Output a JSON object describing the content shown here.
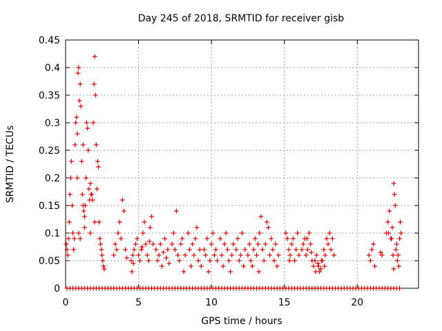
{
  "chart_data": {
    "type": "scatter",
    "title": "Day 245 of 2018, SRMTID for receiver gisb",
    "xlabel": "GPS time / hours",
    "ylabel": "SRMTID / TECUs",
    "xlim": [
      0,
      24.2
    ],
    "ylim": [
      0,
      0.45
    ],
    "xticks": [
      0,
      5,
      10,
      15,
      20
    ],
    "xtick_labels": [
      "0",
      "5",
      "10",
      "15",
      "20"
    ],
    "yticks": [
      0,
      0.05,
      0.1,
      0.15,
      0.2,
      0.25,
      0.3,
      0.35,
      0.4,
      0.45
    ],
    "ytick_labels": [
      "0",
      "0.05",
      "0.1",
      "0.15",
      "0.2",
      "0.25",
      "0.3",
      "0.35",
      "0.4",
      "0.45"
    ],
    "grid": true,
    "marker": "plus",
    "series": [
      {
        "name": "SRMTID",
        "color": "#e00000",
        "points": [
          [
            0.05,
            0.08
          ],
          [
            0.1,
            0.07
          ],
          [
            0.15,
            0.06
          ],
          [
            0.2,
            0.09
          ],
          [
            0.25,
            0.12
          ],
          [
            0.3,
            0.17
          ],
          [
            0.35,
            0.2
          ],
          [
            0.4,
            0.23
          ],
          [
            0.45,
            0.15
          ],
          [
            0.5,
            0.1
          ],
          [
            0.55,
            0.07
          ],
          [
            0.6,
            0.09
          ],
          [
            0.65,
            0.26
          ],
          [
            0.7,
            0.3
          ],
          [
            0.75,
            0.31
          ],
          [
            0.8,
            0.28
          ],
          [
            0.85,
            0.39
          ],
          [
            0.9,
            0.4
          ],
          [
            0.95,
            0.34
          ],
          [
            1.0,
            0.37
          ],
          [
            1.05,
            0.33
          ],
          [
            1.1,
            0.23
          ],
          [
            1.15,
            0.17
          ],
          [
            1.2,
            0.15
          ],
          [
            1.25,
            0.14
          ],
          [
            1.3,
            0.13
          ],
          [
            1.35,
            0.15
          ],
          [
            1.4,
            0.2
          ],
          [
            1.45,
            0.3
          ],
          [
            1.5,
            0.29
          ],
          [
            1.55,
            0.25
          ],
          [
            1.6,
            0.18
          ],
          [
            1.65,
            0.16
          ],
          [
            1.7,
            0.19
          ],
          [
            1.75,
            0.17
          ],
          [
            1.8,
            0.17
          ],
          [
            1.85,
            0.16
          ],
          [
            1.9,
            0.3
          ],
          [
            1.95,
            0.37
          ],
          [
            2.0,
            0.42
          ],
          [
            2.05,
            0.35
          ],
          [
            2.1,
            0.26
          ],
          [
            2.15,
            0.18
          ],
          [
            2.2,
            0.23
          ],
          [
            2.25,
            0.22
          ],
          [
            2.3,
            0.12
          ],
          [
            2.35,
            0.09
          ],
          [
            2.4,
            0.08
          ],
          [
            2.45,
            0.07
          ],
          [
            2.5,
            0.06
          ],
          [
            2.55,
            0.05
          ],
          [
            2.6,
            0.04
          ],
          [
            2.65,
            0.035
          ],
          [
            0.9,
            0.1
          ],
          [
            1.0,
            0.09
          ],
          [
            1.3,
            0.11
          ],
          [
            1.7,
            0.1
          ],
          [
            2.0,
            0.12
          ],
          [
            1.2,
            0.26
          ],
          [
            0.8,
            0.2
          ],
          [
            3.4,
            0.08
          ],
          [
            3.5,
            0.07
          ],
          [
            3.6,
            0.1
          ],
          [
            3.7,
            0.12
          ],
          [
            3.8,
            0.09
          ],
          [
            3.9,
            0.16
          ],
          [
            4.0,
            0.14
          ],
          [
            4.1,
            0.07
          ],
          [
            4.2,
            0.055
          ],
          [
            3.3,
            0.06
          ],
          [
            4.5,
            0.05
          ],
          [
            4.6,
            0.06
          ],
          [
            4.7,
            0.07
          ],
          [
            4.8,
            0.08
          ],
          [
            4.9,
            0.09
          ],
          [
            5.0,
            0.06
          ],
          [
            5.1,
            0.05
          ],
          [
            5.2,
            0.07
          ],
          [
            5.3,
            0.1
          ],
          [
            5.4,
            0.12
          ],
          [
            5.5,
            0.08
          ],
          [
            5.6,
            0.06
          ],
          [
            5.7,
            0.05
          ],
          [
            5.8,
            0.11
          ],
          [
            5.9,
            0.13
          ],
          [
            6.0,
            0.08
          ],
          [
            4.55,
            0.03
          ],
          [
            4.65,
            0.045
          ],
          [
            5.25,
            0.075
          ],
          [
            5.75,
            0.085
          ],
          [
            6.2,
            0.07
          ],
          [
            6.3,
            0.05
          ],
          [
            6.4,
            0.06
          ],
          [
            6.5,
            0.08
          ],
          [
            6.6,
            0.04
          ],
          [
            6.7,
            0.065
          ],
          [
            6.8,
            0.09
          ],
          [
            6.9,
            0.055
          ],
          [
            7.0,
            0.07
          ],
          [
            7.1,
            0.045
          ],
          [
            7.3,
            0.08
          ],
          [
            7.4,
            0.1
          ],
          [
            7.5,
            0.07
          ],
          [
            7.6,
            0.14
          ],
          [
            7.7,
            0.06
          ],
          [
            7.8,
            0.05
          ],
          [
            7.9,
            0.08
          ],
          [
            8.0,
            0.09
          ],
          [
            8.1,
            0.03
          ],
          [
            8.2,
            0.06
          ],
          [
            8.4,
            0.1
          ],
          [
            8.5,
            0.07
          ],
          [
            8.6,
            0.04
          ],
          [
            8.7,
            0.08
          ],
          [
            8.8,
            0.06
          ],
          [
            8.9,
            0.09
          ],
          [
            9.0,
            0.11
          ],
          [
            9.1,
            0.05
          ],
          [
            9.2,
            0.07
          ],
          [
            9.3,
            0.04
          ],
          [
            9.5,
            0.07
          ],
          [
            9.6,
            0.06
          ],
          [
            9.7,
            0.09
          ],
          [
            9.8,
            0.03
          ],
          [
            9.9,
            0.05
          ],
          [
            10.0,
            0.08
          ],
          [
            10.1,
            0.1
          ],
          [
            10.2,
            0.06
          ],
          [
            10.3,
            0.07
          ],
          [
            10.4,
            0.05
          ],
          [
            10.6,
            0.09
          ],
          [
            10.7,
            0.06
          ],
          [
            10.8,
            0.04
          ],
          [
            10.9,
            0.08
          ],
          [
            11.0,
            0.1
          ],
          [
            11.1,
            0.07
          ],
          [
            11.2,
            0.05
          ],
          [
            11.3,
            0.03
          ],
          [
            11.4,
            0.06
          ],
          [
            11.5,
            0.08
          ],
          [
            11.7,
            0.07
          ],
          [
            11.8,
            0.09
          ],
          [
            11.9,
            0.05
          ],
          [
            12.0,
            0.06
          ],
          [
            12.1,
            0.1
          ],
          [
            12.2,
            0.04
          ],
          [
            12.3,
            0.07
          ],
          [
            12.5,
            0.06
          ],
          [
            12.6,
            0.08
          ],
          [
            12.7,
            0.05
          ],
          [
            12.9,
            0.07
          ],
          [
            13.0,
            0.09
          ],
          [
            13.1,
            0.06
          ],
          [
            13.2,
            0.08
          ],
          [
            13.3,
            0.1
          ],
          [
            13.4,
            0.13
          ],
          [
            13.5,
            0.07
          ],
          [
            13.6,
            0.05
          ],
          [
            13.7,
            0.08
          ],
          [
            13.8,
            0.12
          ],
          [
            13.9,
            0.11
          ],
          [
            14.0,
            0.06
          ],
          [
            14.1,
            0.09
          ],
          [
            14.2,
            0.07
          ],
          [
            14.3,
            0.05
          ],
          [
            14.4,
            0.08
          ],
          [
            14.5,
            0.04
          ],
          [
            14.6,
            0.06
          ],
          [
            13.25,
            0.03
          ],
          [
            12.8,
            0.04
          ],
          [
            15.2,
            0.09
          ],
          [
            15.3,
            0.07
          ],
          [
            15.4,
            0.06
          ],
          [
            15.5,
            0.08
          ],
          [
            15.6,
            0.09
          ],
          [
            15.7,
            0.05
          ],
          [
            15.8,
            0.07
          ],
          [
            15.9,
            0.1
          ],
          [
            16.0,
            0.06
          ],
          [
            15.1,
            0.1
          ],
          [
            16.2,
            0.07
          ],
          [
            16.3,
            0.08
          ],
          [
            16.4,
            0.09
          ],
          [
            16.5,
            0.06
          ],
          [
            16.6,
            0.07
          ],
          [
            16.7,
            0.1
          ],
          [
            16.8,
            0.08
          ],
          [
            16.9,
            0.05
          ],
          [
            17.0,
            0.04
          ],
          [
            17.1,
            0.05
          ],
          [
            17.2,
            0.06
          ],
          [
            17.3,
            0.045
          ],
          [
            17.4,
            0.03
          ],
          [
            17.5,
            0.035
          ],
          [
            17.6,
            0.05
          ],
          [
            17.7,
            0.07
          ],
          [
            17.8,
            0.06
          ],
          [
            17.9,
            0.09
          ],
          [
            18.0,
            0.08
          ],
          [
            18.1,
            0.1
          ],
          [
            18.2,
            0.07
          ],
          [
            18.3,
            0.09
          ],
          [
            18.4,
            0.06
          ],
          [
            17.15,
            0.03
          ],
          [
            17.35,
            0.04
          ],
          [
            17.55,
            0.05
          ],
          [
            17.75,
            0.04
          ],
          [
            16.55,
            0.09
          ],
          [
            15.35,
            0.05
          ],
          [
            16.85,
            0.065
          ],
          [
            20.8,
            0.06
          ],
          [
            20.9,
            0.05
          ],
          [
            21.0,
            0.07
          ],
          [
            21.1,
            0.08
          ],
          [
            21.2,
            0.04
          ],
          [
            21.6,
            0.065
          ],
          [
            21.7,
            0.06
          ],
          [
            22.0,
            0.1
          ],
          [
            22.1,
            0.12
          ],
          [
            22.2,
            0.14
          ],
          [
            22.3,
            0.09
          ],
          [
            22.4,
            0.11
          ],
          [
            22.5,
            0.19
          ],
          [
            22.55,
            0.17
          ],
          [
            22.6,
            0.15
          ],
          [
            22.65,
            0.07
          ],
          [
            22.7,
            0.08
          ],
          [
            22.75,
            0.05
          ],
          [
            22.8,
            0.06
          ],
          [
            22.85,
            0.04
          ],
          [
            22.9,
            0.09
          ],
          [
            22.95,
            0.12
          ],
          [
            23.0,
            0.1
          ],
          [
            22.5,
            0.035
          ],
          [
            22.35,
            0.09
          ],
          [
            22.45,
            0.06
          ],
          [
            22.15,
            0.1
          ]
        ],
        "zero_points_x": [
          0.1,
          0.3,
          0.5,
          0.7,
          0.9,
          1.1,
          1.3,
          1.5,
          1.7,
          1.9,
          2.1,
          2.3,
          2.5,
          2.7,
          2.9,
          3.1,
          3.3,
          3.5,
          3.7,
          3.9,
          4.1,
          4.3,
          4.5,
          4.7,
          4.9,
          5.1,
          5.3,
          5.5,
          5.7,
          5.9,
          6.1,
          6.3,
          6.5,
          6.7,
          6.9,
          7.1,
          7.3,
          7.5,
          7.7,
          7.9,
          8.1,
          8.3,
          8.5,
          8.7,
          8.9,
          9.1,
          9.3,
          9.5,
          9.7,
          9.9,
          10.1,
          10.3,
          10.5,
          10.7,
          10.9,
          11.1,
          11.3,
          11.5,
          11.7,
          11.9,
          12.1,
          12.3,
          12.5,
          12.7,
          12.9,
          13.1,
          13.3,
          13.5,
          13.7,
          13.9,
          14.1,
          14.3,
          14.5,
          14.7,
          14.9,
          15.1,
          15.3,
          15.5,
          15.7,
          15.9,
          16.1,
          16.3,
          16.5,
          16.7,
          16.9,
          17.1,
          17.3,
          17.5,
          17.7,
          17.9,
          18.1,
          18.3,
          18.5,
          18.7,
          18.9,
          19.1,
          19.3,
          19.5,
          19.7,
          19.9,
          20.1,
          20.3,
          20.5,
          20.7,
          20.9,
          21.1,
          21.3,
          21.5,
          21.7,
          21.9,
          22.1,
          22.3,
          22.5,
          22.7,
          22.9
        ]
      }
    ]
  }
}
